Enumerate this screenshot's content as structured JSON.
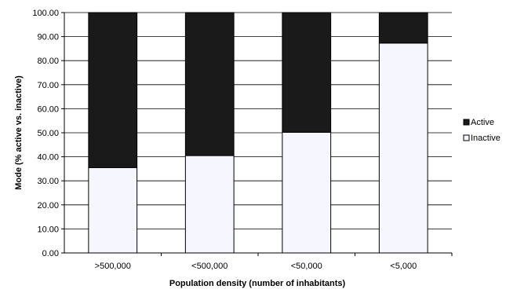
{
  "chart_data": {
    "type": "bar",
    "stacked": true,
    "categories": [
      ">500,000",
      "<500,000",
      "<50,000",
      "<5,000"
    ],
    "series": [
      {
        "name": "Inactive",
        "values": [
          35.5,
          40.5,
          50.2,
          87.3
        ]
      },
      {
        "name": "Active",
        "values": [
          64.5,
          59.5,
          49.8,
          12.7
        ]
      }
    ],
    "legend_order": [
      "Active",
      "Inactive"
    ],
    "ylim": [
      0,
      100
    ],
    "yticks": [
      "0.00",
      "10.00",
      "20.00",
      "30.00",
      "40.00",
      "50.00",
      "60.00",
      "70.00",
      "80.00",
      "90.00",
      "100.00"
    ],
    "xlabel": "Population density (number of inhabitants)",
    "ylabel": "Mode (% active vs. inactive)",
    "grid": true,
    "legend_position": "right",
    "colors": {
      "Active": "#1a1a1a",
      "Inactive": "#f6f6ff",
      "grid": "#000000",
      "stroke": "#000000"
    }
  }
}
